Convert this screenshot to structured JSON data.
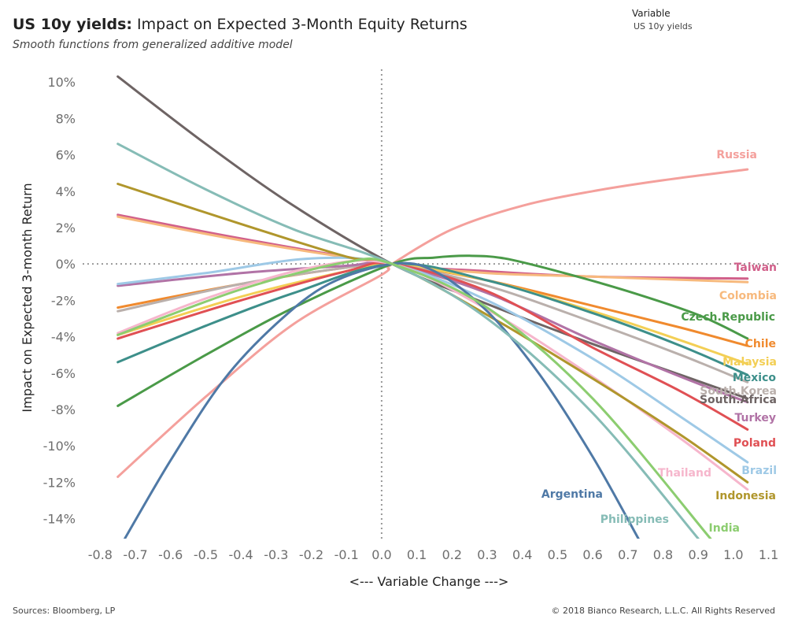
{
  "header": {
    "title_bold": "US 10y yields:",
    "title_rest": " Impact on Expected 3-Month Equity Returns",
    "subtitle": "Smooth functions from generalized additive model"
  },
  "filter": {
    "label": "Variable",
    "value": "US 10y yields"
  },
  "footer": {
    "source": "Sources: Bloomberg, LP",
    "copyright": "© 2018 Bianco Research, L.L.C. All Rights Reserved"
  },
  "chart_data": {
    "type": "line",
    "xlabel": "<--- Variable Change --->",
    "ylabel": "Impact on Expected 3-month Return",
    "xlim": [
      -0.85,
      1.13
    ],
    "ylim": [
      -15.1,
      10.7
    ],
    "x_ticks": [
      -0.8,
      -0.7,
      -0.6,
      -0.5,
      -0.4,
      -0.3,
      -0.2,
      -0.1,
      0.0,
      0.1,
      0.2,
      0.3,
      0.4,
      0.5,
      0.6,
      0.7,
      0.8,
      0.9,
      1.0,
      1.1
    ],
    "x_tick_labels": [
      "-0.8",
      "-0.7",
      "-0.6",
      "-0.5",
      "-0.4",
      "-0.3",
      "-0.2",
      "-0.1",
      "0.0",
      "0.1",
      "0.2",
      "0.3",
      "0.4",
      "0.5",
      "0.6",
      "0.7",
      "0.8",
      "0.9",
      "1.0",
      "1.1"
    ],
    "y_ticks": [
      10,
      8,
      6,
      4,
      2,
      0,
      -2,
      -4,
      -6,
      -8,
      -10,
      -12,
      -14
    ],
    "y_tick_labels": [
      "10%",
      "8%",
      "6%",
      "4%",
      "2%",
      "0%",
      "-2%",
      "-4%",
      "-6%",
      "-8%",
      "-10%",
      "-12%",
      "-14%"
    ],
    "reference_lines": {
      "x": 0.0,
      "y": 0.0,
      "style": "dotted"
    },
    "grid": false,
    "series": [
      {
        "name": "Russia",
        "color": "#f4a09c",
        "x": [
          -0.75,
          -0.5,
          -0.25,
          0.0,
          0.03,
          0.2,
          0.4,
          0.6,
          0.8,
          1.04
        ],
        "y": [
          -11.7,
          -7.3,
          -3.3,
          -0.6,
          0.0,
          1.9,
          3.2,
          4.0,
          4.6,
          5.2
        ]
      },
      {
        "name": "Taiwan",
        "color": "#d1608a",
        "x": [
          -0.75,
          -0.4,
          0.03,
          0.3,
          0.6,
          1.04
        ],
        "y": [
          2.7,
          1.4,
          0.0,
          -0.4,
          -0.7,
          -0.8
        ]
      },
      {
        "name": "Colombia",
        "color": "#f7b97d",
        "x": [
          -0.75,
          -0.4,
          0.03,
          0.3,
          0.6,
          1.04
        ],
        "y": [
          2.6,
          1.3,
          0.0,
          -0.5,
          -0.7,
          -1.0
        ]
      },
      {
        "name": "Czech.Republic",
        "color": "#4a9a48",
        "x": [
          -0.75,
          -0.5,
          -0.25,
          0.03,
          0.15,
          0.25,
          0.35,
          0.5,
          0.7,
          0.9,
          1.04
        ],
        "y": [
          -7.8,
          -5.0,
          -2.4,
          0.0,
          0.35,
          0.45,
          0.3,
          -0.4,
          -1.5,
          -2.8,
          -4.1
        ]
      },
      {
        "name": "Chile",
        "color": "#f08a2e",
        "x": [
          -0.75,
          -0.4,
          -0.1,
          0.03,
          0.3,
          0.6,
          0.85,
          1.04
        ],
        "y": [
          -2.4,
          -1.1,
          -0.2,
          0.0,
          -0.9,
          -2.3,
          -3.5,
          -4.5
        ]
      },
      {
        "name": "Malaysia",
        "color": "#f3cf55",
        "x": [
          -0.75,
          -0.4,
          -0.1,
          0.03,
          0.3,
          0.6,
          0.85,
          1.04
        ],
        "y": [
          -3.9,
          -1.8,
          -0.4,
          0.0,
          -0.9,
          -2.6,
          -4.2,
          -5.5
        ]
      },
      {
        "name": "Mexico",
        "color": "#3d8f8a",
        "x": [
          -0.75,
          -0.5,
          -0.25,
          0.03,
          0.3,
          0.6,
          0.85,
          1.04
        ],
        "y": [
          -5.4,
          -3.4,
          -1.6,
          0.0,
          -0.9,
          -2.7,
          -4.5,
          -6.1
        ]
      },
      {
        "name": "South.Korea",
        "color": "#bab0ac",
        "x": [
          -0.75,
          -0.4,
          -0.1,
          0.03,
          0.3,
          0.6,
          0.85,
          1.04
        ],
        "y": [
          -2.6,
          -1.1,
          -0.2,
          0.0,
          -1.2,
          -3.2,
          -5.0,
          -6.5
        ]
      },
      {
        "name": "South.Africa",
        "color": "#6e6464",
        "x": [
          -0.75,
          -0.5,
          -0.25,
          0.03,
          0.3,
          0.6,
          0.85,
          1.04
        ],
        "y": [
          10.3,
          6.6,
          3.2,
          0.0,
          -2.2,
          -4.4,
          -6.1,
          -7.4
        ]
      },
      {
        "name": "Turkey",
        "color": "#b173a6",
        "x": [
          -0.75,
          -0.4,
          -0.1,
          0.03,
          0.3,
          0.6,
          0.85,
          1.04
        ],
        "y": [
          -1.2,
          -0.5,
          -0.1,
          0.0,
          -1.6,
          -4.2,
          -6.2,
          -7.6
        ]
      },
      {
        "name": "Poland",
        "color": "#e05054",
        "x": [
          -0.75,
          -0.4,
          -0.1,
          0.03,
          0.3,
          0.6,
          0.85,
          1.04
        ],
        "y": [
          -4.1,
          -2.0,
          -0.4,
          0.0,
          -1.5,
          -4.6,
          -7.0,
          -9.1
        ]
      },
      {
        "name": "Brazil",
        "color": "#9ec9e6",
        "x": [
          -0.75,
          -0.5,
          -0.2,
          0.03,
          0.3,
          0.6,
          0.85,
          1.04
        ],
        "y": [
          -1.1,
          -0.5,
          0.3,
          0.0,
          -2.0,
          -5.2,
          -8.4,
          -10.9
        ]
      },
      {
        "name": "Thailand",
        "color": "#f6b6cc",
        "x": [
          -0.75,
          -0.5,
          -0.2,
          0.03,
          0.3,
          0.6,
          0.85,
          1.04
        ],
        "y": [
          -3.8,
          -1.9,
          -0.2,
          0.0,
          -2.5,
          -6.2,
          -9.6,
          -12.4
        ]
      },
      {
        "name": "Indonesia",
        "color": "#b0962c",
        "x": [
          -0.75,
          -0.4,
          -0.1,
          0.03,
          0.3,
          0.6,
          0.85,
          1.04
        ],
        "y": [
          4.4,
          2.2,
          0.4,
          0.0,
          -2.8,
          -6.3,
          -9.4,
          -12.0
        ]
      },
      {
        "name": "Argentina",
        "color": "#4f79a6",
        "x": [
          -0.73,
          -0.6,
          -0.45,
          -0.3,
          -0.15,
          0.03,
          0.15,
          0.3,
          0.45,
          0.6,
          0.73
        ],
        "y": [
          -15.1,
          -10.8,
          -6.4,
          -3.3,
          -1.1,
          0.0,
          -0.4,
          -2.6,
          -6.1,
          -10.6,
          -15.1
        ]
      },
      {
        "name": "Philippines",
        "color": "#86bcb6",
        "x": [
          -0.75,
          -0.5,
          -0.25,
          0.03,
          0.3,
          0.6,
          0.9
        ],
        "y": [
          6.6,
          4.1,
          1.9,
          0.0,
          -3.0,
          -8.2,
          -15.1
        ]
      },
      {
        "name": "India",
        "color": "#8ccd70",
        "x": [
          -0.75,
          -0.4,
          -0.1,
          0.03,
          0.3,
          0.6,
          0.935
        ],
        "y": [
          -3.9,
          -1.4,
          0.1,
          0.0,
          -2.4,
          -7.4,
          -15.1
        ]
      }
    ],
    "labels": {
      "Russia": "Russia",
      "Taiwan": "Taiwan",
      "Colombia": "Colombia",
      "Czech.Republic": "Czech.Republic",
      "Chile": "Chile",
      "Malaysia": "Malaysia",
      "Mexico": "Mexico",
      "South.Korea": "South.Korea",
      "South.Africa": "South.Africa",
      "Turkey": "Turkey",
      "Poland": "Poland",
      "Brazil": "Brazil",
      "Thailand": "Thailand",
      "Indonesia": "Indonesia",
      "Argentina": "Argentina",
      "Philippines": "Philippines",
      "India": "India"
    }
  }
}
